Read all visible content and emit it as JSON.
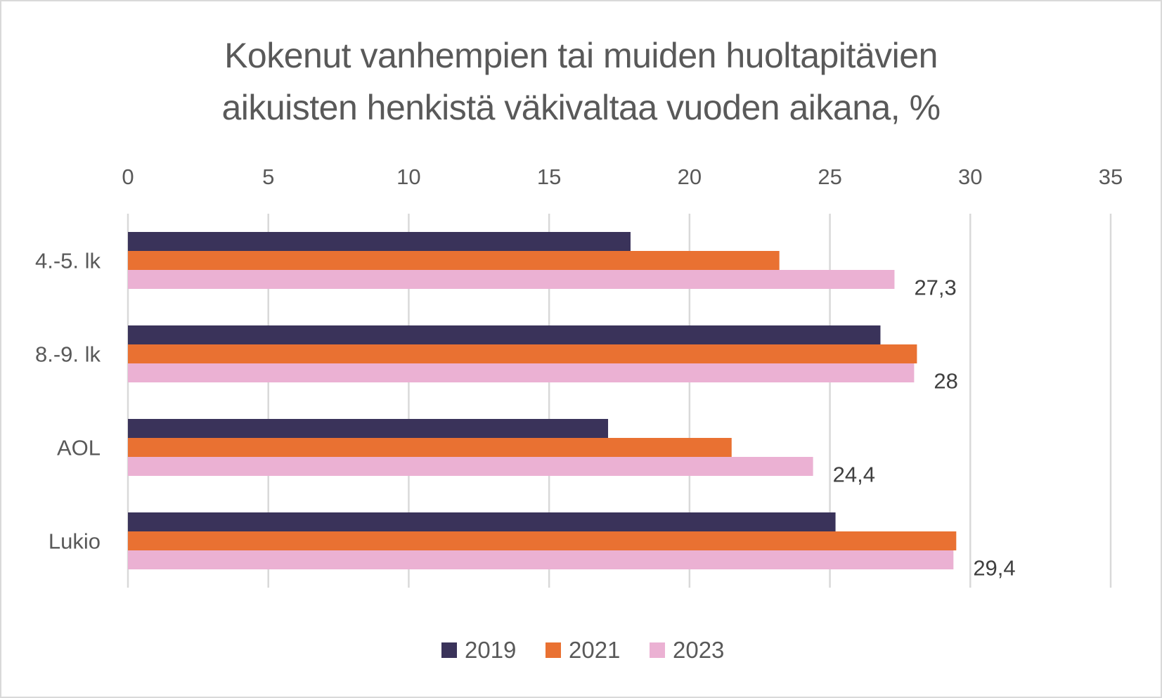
{
  "chart_data": {
    "type": "bar",
    "orientation": "horizontal",
    "title_lines": [
      "Kokenut vanhempien tai muiden huoltapitävien",
      "aikuisten henkistä väkivaltaa vuoden aikana, %"
    ],
    "title": "Kokenut vanhempien tai muiden huoltapitävien aikuisten henkistä väkivaltaa vuoden aikana, %",
    "xlabel": "",
    "ylabel": "",
    "categories": [
      "4.-5. lk",
      "8.-9. lk",
      "AOL",
      "Lukio"
    ],
    "series": [
      {
        "name": "2019",
        "color": "#3a335a",
        "values": [
          17.9,
          26.8,
          17.1,
          25.2
        ],
        "show_labels": false
      },
      {
        "name": "2021",
        "color": "#e97132",
        "values": [
          23.2,
          28.1,
          21.5,
          29.5
        ],
        "show_labels": false
      },
      {
        "name": "2023",
        "color": "#ebb1d3",
        "values": [
          27.3,
          28.0,
          24.4,
          29.4
        ],
        "show_labels": true
      }
    ],
    "data_labels": [
      "27,3",
      "28",
      "24,4",
      "29,4"
    ],
    "xlim": [
      0,
      35
    ],
    "xticks": [
      0,
      5,
      10,
      15,
      20,
      25,
      30,
      35
    ],
    "xtick_labels": [
      "0",
      "5",
      "10",
      "15",
      "20",
      "25",
      "30",
      "35"
    ],
    "x_axis_position": "top",
    "grid": true,
    "gridline_color": "#d9d9d9",
    "legend": {
      "position": "bottom",
      "entries": [
        "2019",
        "2021",
        "2023"
      ]
    }
  }
}
